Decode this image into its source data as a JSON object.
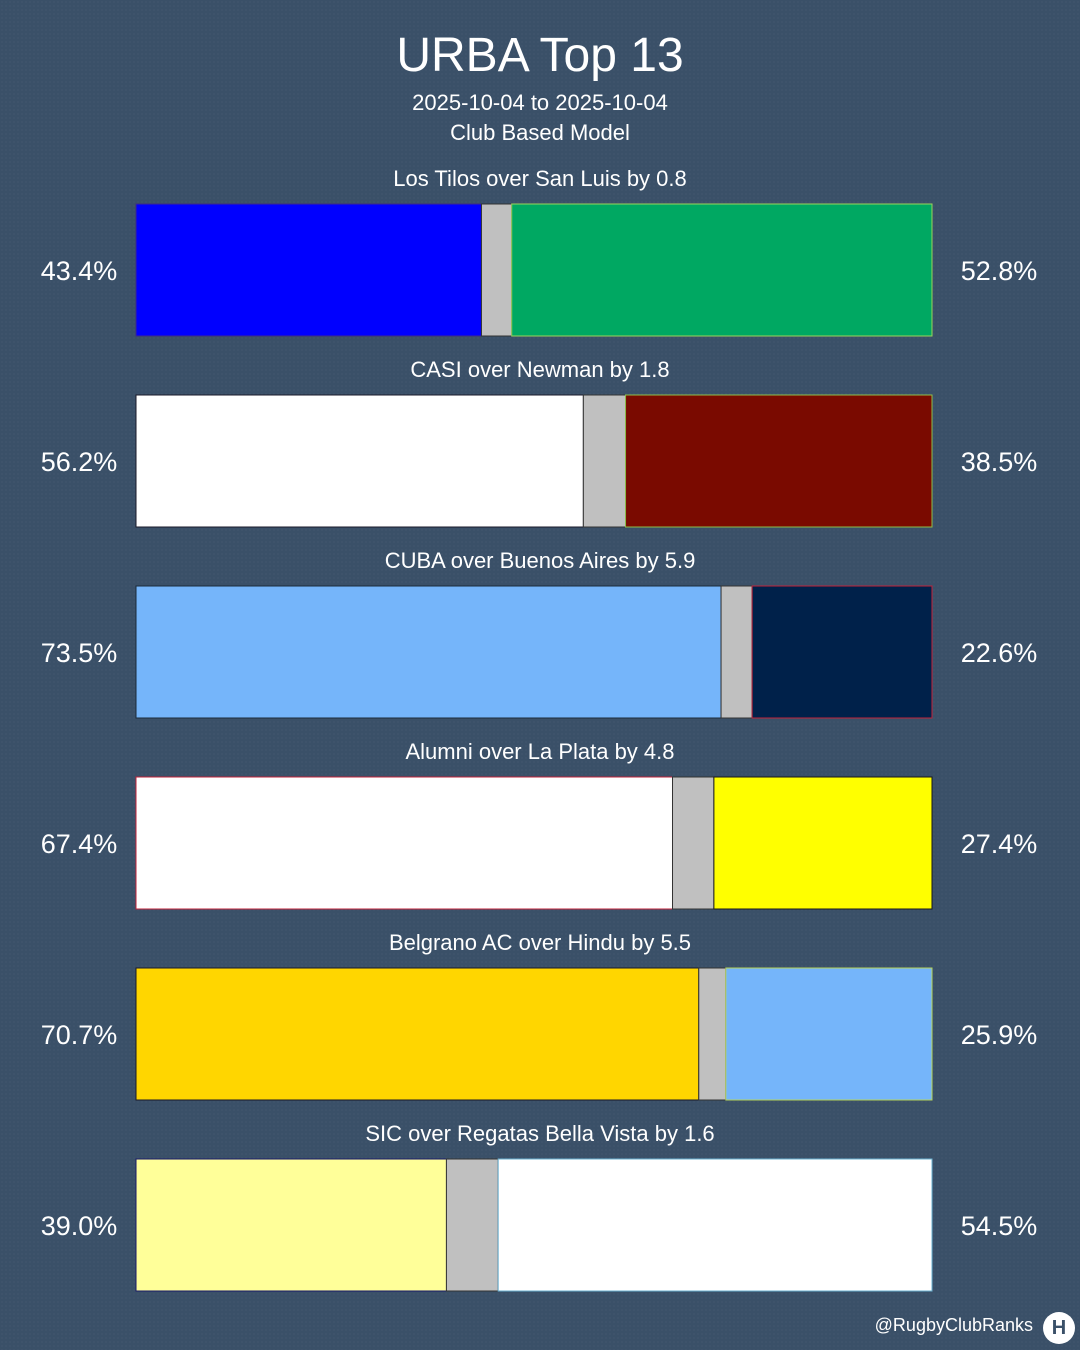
{
  "header": {
    "title": "URBA Top 13",
    "date_range": "2025-10-04 to 2025-10-04",
    "model": "Club Based Model"
  },
  "chart_data": {
    "type": "bar",
    "orientation": "horizontal-stacked",
    "xlim": [
      0,
      100
    ],
    "draw_color": "#c0c0c0",
    "matches": [
      {
        "label": "Los Tilos over San Luis by 0.8",
        "home_pct": 43.4,
        "away_pct": 52.8,
        "home_label": "43.4%",
        "away_label": "52.8%",
        "home_color": "#0000ff",
        "home_border": "#3c2a8a",
        "away_color": "#00a862",
        "away_border": "#9bd45a"
      },
      {
        "label": "CASI over Newman by 1.8",
        "home_pct": 56.2,
        "away_pct": 38.5,
        "home_label": "56.2%",
        "away_label": "38.5%",
        "home_color": "#ffffff",
        "home_border": "#1a1a2a",
        "away_color": "#7a0a00",
        "away_border": "#8fbf4a"
      },
      {
        "label": "CUBA over Buenos Aires by 5.9",
        "home_pct": 73.5,
        "away_pct": 22.6,
        "home_label": "73.5%",
        "away_label": "22.6%",
        "home_color": "#75b5fa",
        "home_border": "#1a2a3a",
        "away_color": "#00214a",
        "away_border": "#c0223a"
      },
      {
        "label": "Alumni over La Plata by 4.8",
        "home_pct": 67.4,
        "away_pct": 27.4,
        "home_label": "67.4%",
        "away_label": "27.4%",
        "home_color": "#ffffff",
        "home_border": "#c0223a",
        "away_color": "#ffff00",
        "away_border": "#1a1a1a"
      },
      {
        "label": "Belgrano AC over Hindu by 5.5",
        "home_pct": 70.7,
        "away_pct": 25.9,
        "home_label": "70.7%",
        "away_label": "25.9%",
        "home_color": "#ffd600",
        "home_border": "#1a1a2a",
        "away_color": "#75b5fa",
        "away_border": "#b5d45a"
      },
      {
        "label": "SIC over Regatas Bella Vista by 1.6",
        "home_pct": 39.0,
        "away_pct": 54.5,
        "home_label": "39.0%",
        "away_label": "54.5%",
        "home_color": "#ffff99",
        "home_border": "#1a1a6a",
        "away_color": "#ffffff",
        "away_border": "#6ab0d0"
      }
    ]
  },
  "footer": {
    "credit": "@RugbyClubRanks",
    "logo_icon": "rugby-posts-icon"
  }
}
